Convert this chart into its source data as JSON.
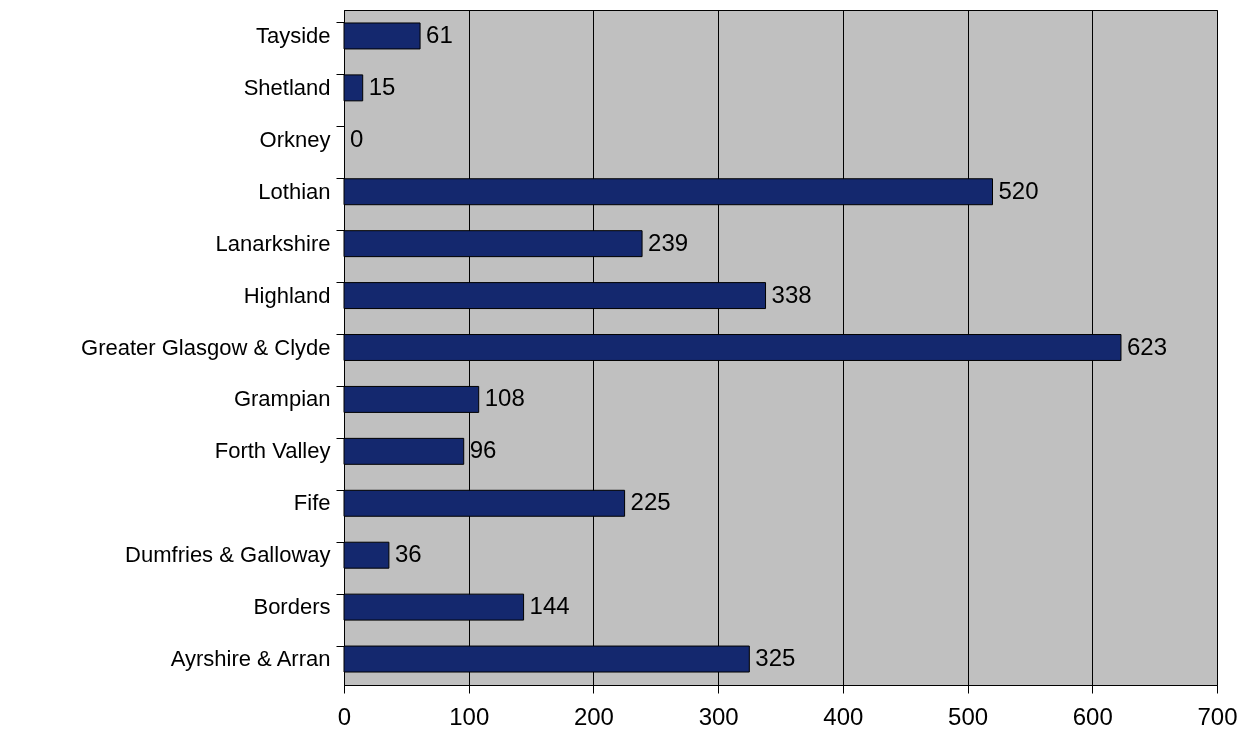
{
  "chart_data": {
    "type": "bar",
    "orientation": "horizontal",
    "categories": [
      "Tayside",
      "Shetland",
      "Orkney",
      "Lothian",
      "Lanarkshire",
      "Highland",
      "Greater Glasgow & Clyde",
      "Grampian",
      "Forth Valley",
      "Fife",
      "Dumfries & Galloway",
      "Borders",
      "Ayrshire & Arran"
    ],
    "values": [
      61,
      15,
      0,
      520,
      239,
      338,
      623,
      108,
      96,
      225,
      36,
      144,
      325
    ],
    "color": "#14286e",
    "xlim": [
      0,
      700
    ],
    "xticks": [
      0,
      100,
      200,
      300,
      400,
      500,
      600,
      700
    ],
    "grid": "x",
    "data_labels": true
  }
}
